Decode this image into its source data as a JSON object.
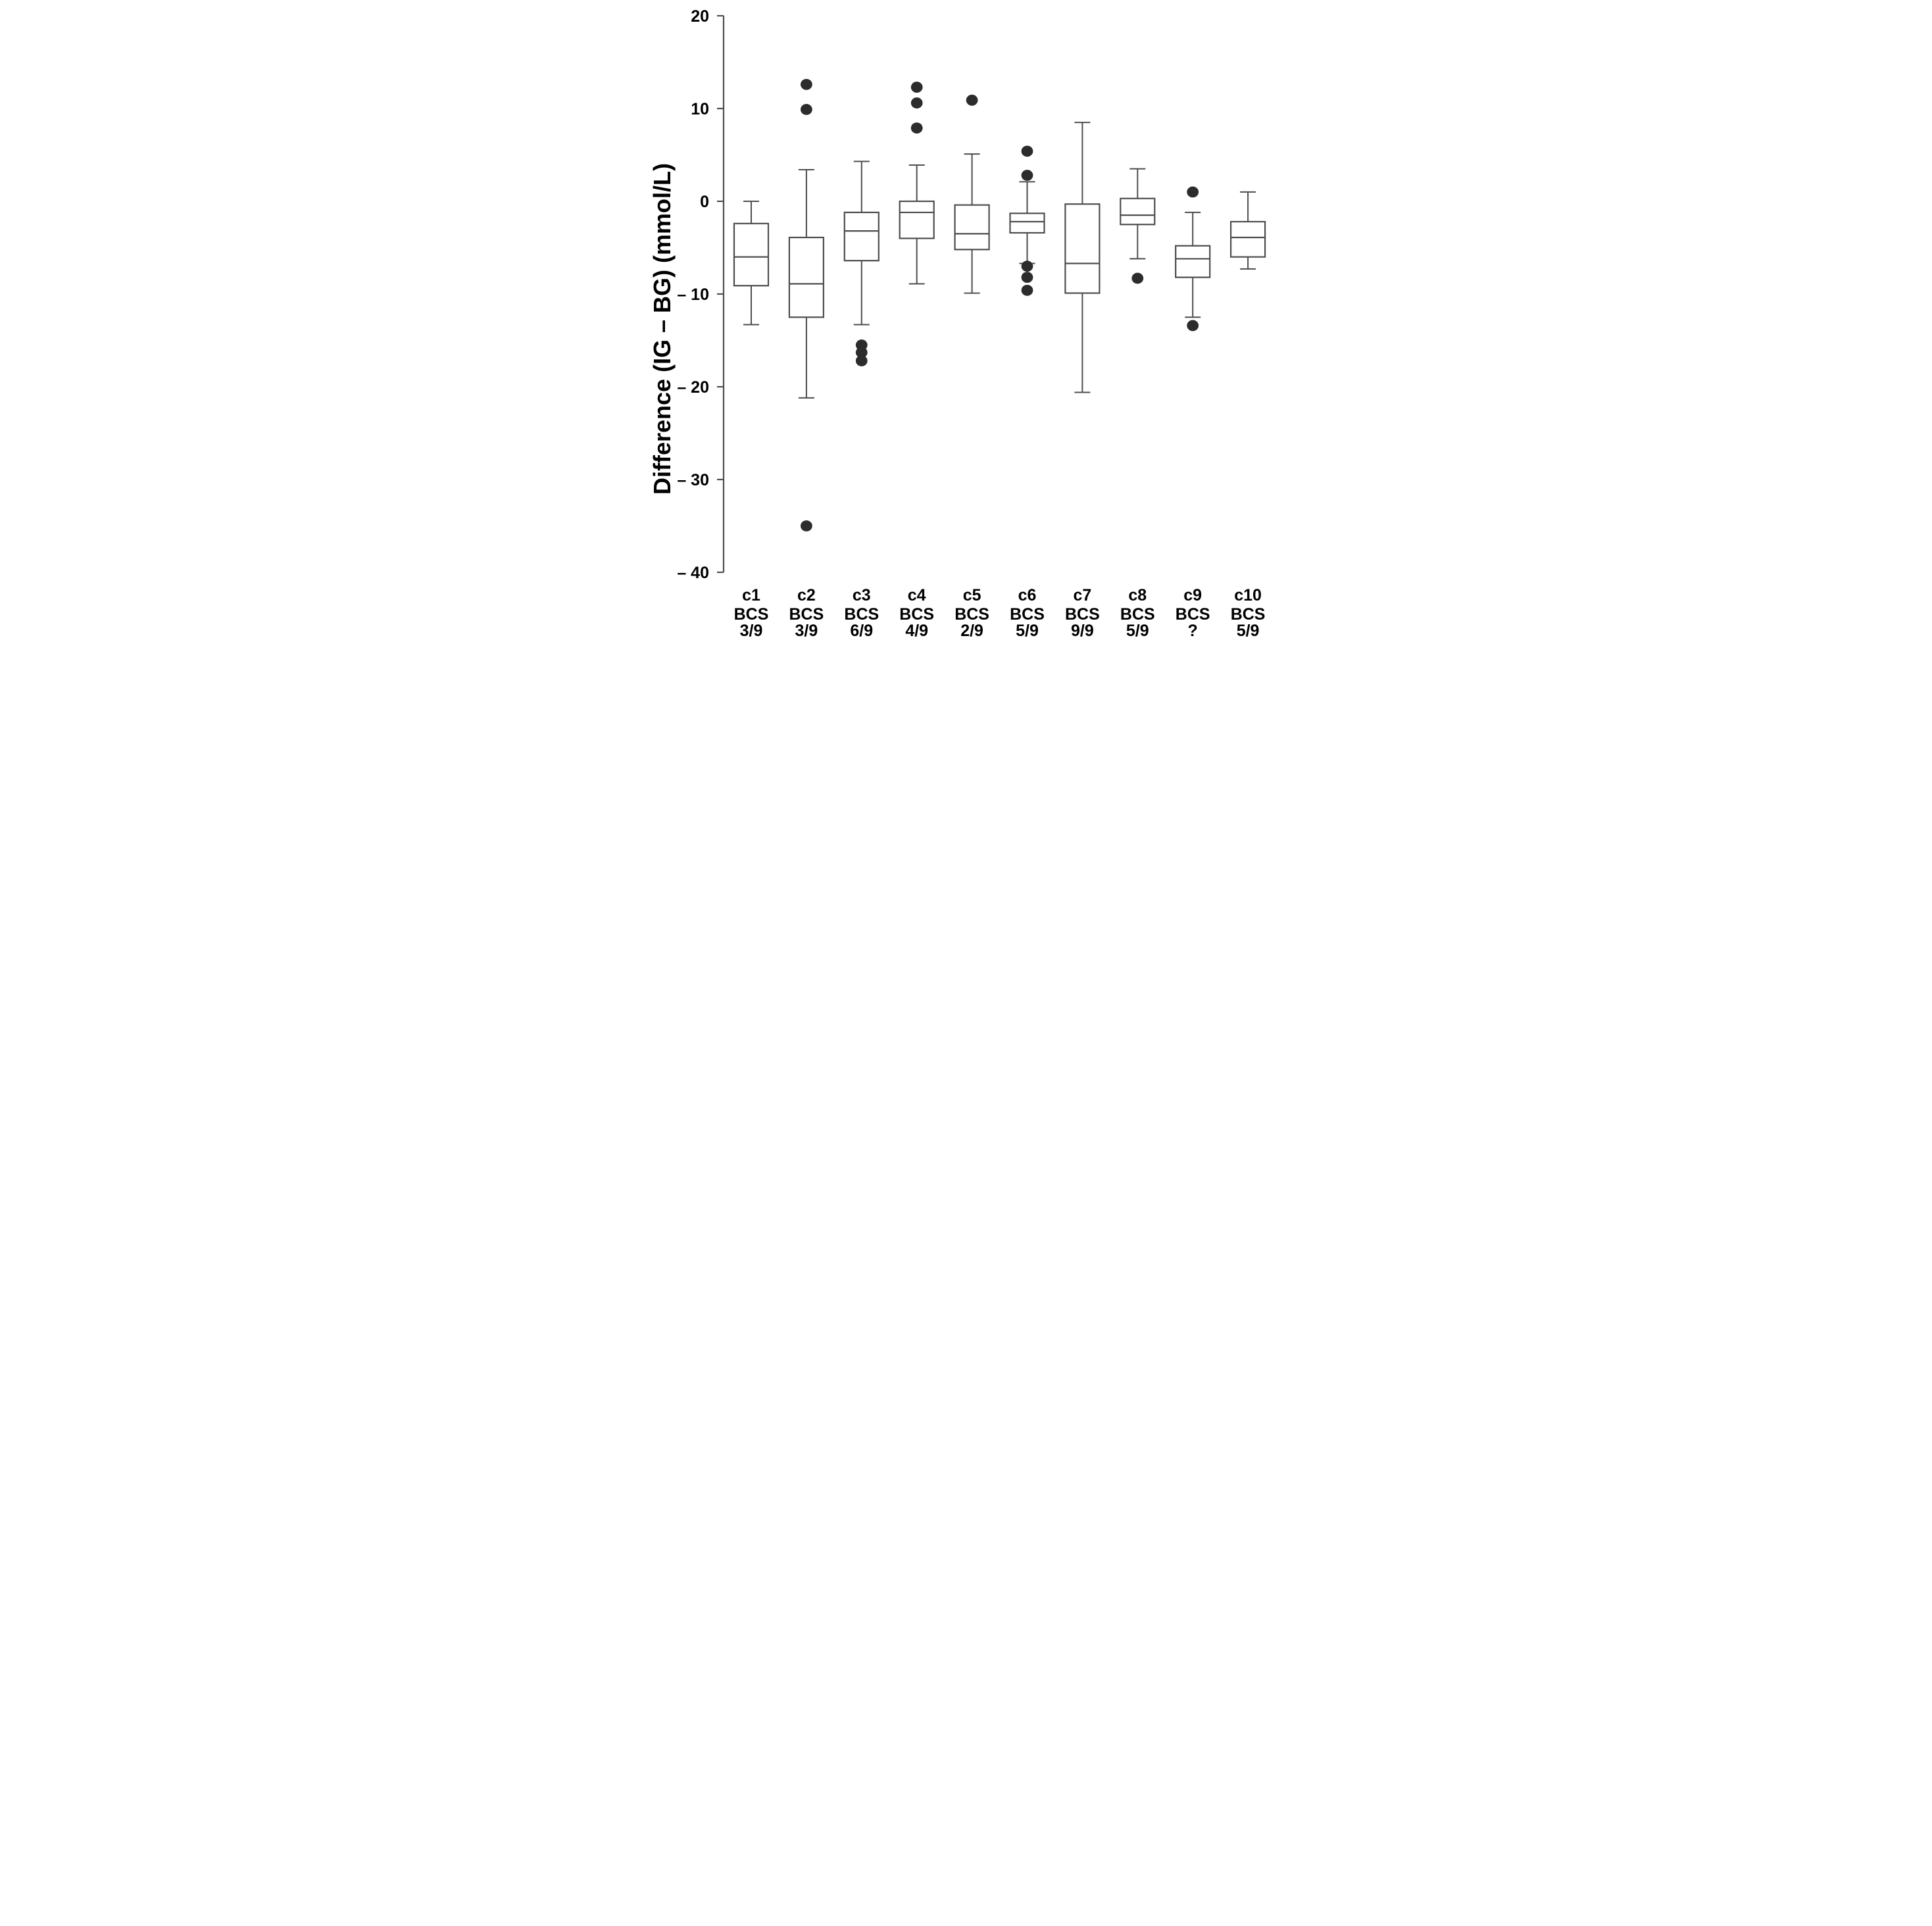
{
  "figure": {
    "background": "#ffffff",
    "line_color": "#4d4d4d",
    "dot_color": "#2c2c2c",
    "text_color": "#000000"
  },
  "chart_data": {
    "type": "boxplot",
    "title": "",
    "xlabel": "",
    "ylabel": "Difference (IG – BG) (mmol/L)",
    "ylim": [
      -40,
      20
    ],
    "grid": false,
    "legend": "none",
    "yticks": [
      {
        "value": 20,
        "label": "20"
      },
      {
        "value": 10,
        "label": "10"
      },
      {
        "value": 0,
        "label": "0"
      },
      {
        "value": -10,
        "label": "– 10"
      },
      {
        "value": -20,
        "label": "– 20"
      },
      {
        "value": -30,
        "label": "– 30"
      },
      {
        "value": -40,
        "label": "– 40"
      }
    ],
    "bcs_label": "BCS",
    "categories": [
      {
        "id": "c1",
        "bcs": "3/9",
        "whisker_high": 0.0,
        "q3": -2.4,
        "median": -6.0,
        "q1": -9.1,
        "whisker_low": -13.3,
        "outliers": []
      },
      {
        "id": "c2",
        "bcs": "3/9",
        "whisker_high": 3.4,
        "q3": -3.9,
        "median": -8.9,
        "q1": -12.5,
        "whisker_low": -21.2,
        "outliers": [
          12.6,
          9.9,
          -35.0
        ]
      },
      {
        "id": "c3",
        "bcs": "6/9",
        "whisker_high": 4.3,
        "q3": -1.2,
        "median": -3.2,
        "q1": -6.4,
        "whisker_low": -13.3,
        "outliers": [
          -15.5,
          -16.3,
          -17.2
        ]
      },
      {
        "id": "c4",
        "bcs": "4/9",
        "whisker_high": 3.9,
        "q3": 0.0,
        "median": -1.2,
        "q1": -4.0,
        "whisker_low": -8.9,
        "outliers": [
          12.3,
          10.6,
          7.9
        ]
      },
      {
        "id": "c5",
        "bcs": "2/9",
        "whisker_high": 5.1,
        "q3": -0.4,
        "median": -3.5,
        "q1": -5.2,
        "whisker_low": -9.9,
        "outliers": [
          10.9
        ]
      },
      {
        "id": "c6",
        "bcs": "5/9",
        "whisker_high": 2.1,
        "q3": -1.3,
        "median": -2.2,
        "q1": -3.4,
        "whisker_low": -6.7,
        "outliers": [
          5.4,
          2.8,
          -7.0,
          -8.2,
          -9.6
        ]
      },
      {
        "id": "c7",
        "bcs": "9/9",
        "whisker_high": 8.5,
        "q3": -0.3,
        "median": -6.7,
        "q1": -9.9,
        "whisker_low": -20.6,
        "outliers": []
      },
      {
        "id": "c8",
        "bcs": "5/9",
        "whisker_high": 3.5,
        "q3": 0.3,
        "median": -1.5,
        "q1": -2.5,
        "whisker_low": -6.2,
        "outliers": [
          -8.3
        ]
      },
      {
        "id": "c9",
        "bcs": "?",
        "whisker_high": -1.2,
        "q3": -4.8,
        "median": -6.2,
        "q1": -8.2,
        "whisker_low": -12.5,
        "outliers": [
          1.0,
          -13.4
        ]
      },
      {
        "id": "c10",
        "bcs": "5/9",
        "whisker_high": 1.0,
        "q3": -2.2,
        "median": -3.9,
        "q1": -6.0,
        "whisker_low": -7.3,
        "outliers": []
      }
    ]
  }
}
